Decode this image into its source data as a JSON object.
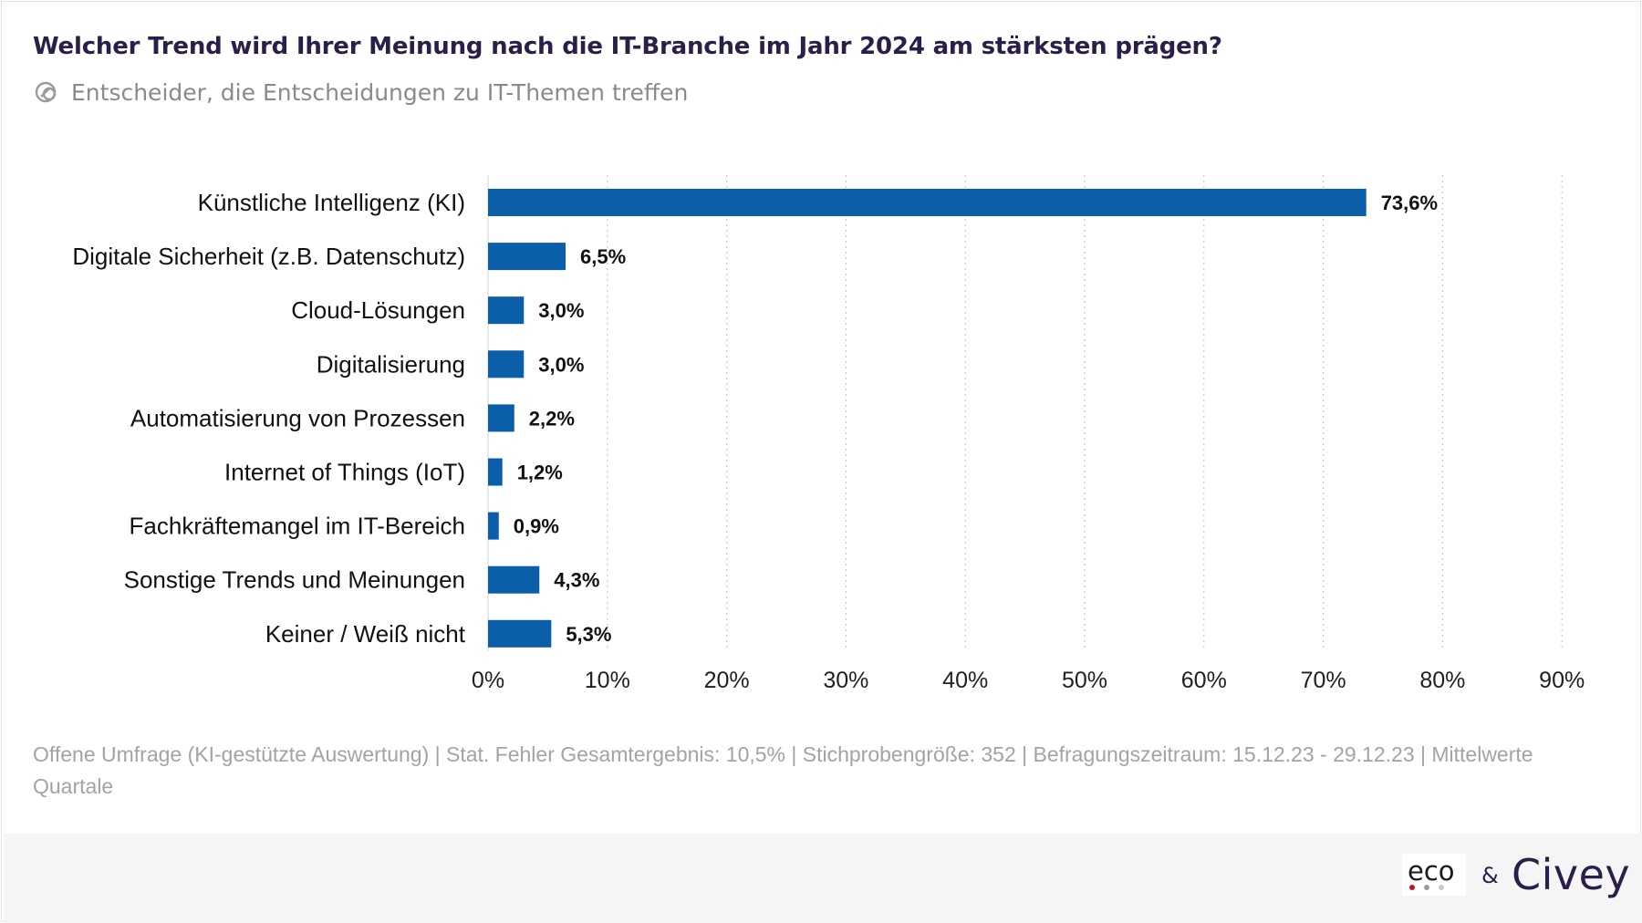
{
  "header": {
    "title": "Welcher Trend wird Ihrer Meinung nach die IT-Branche im Jahr 2024 am stärksten prägen?",
    "subtitle": "Entscheider, die Entscheidungen zu IT-Themen treffen",
    "subtitle_icon": "target-group-icon"
  },
  "chart_data": {
    "type": "bar",
    "orientation": "horizontal",
    "categories": [
      "Künstliche Intelligenz (KI)",
      "Digitale Sicherheit (z.B. Datenschutz)",
      "Cloud-Lösungen",
      "Digitalisierung",
      "Automatisierung von Prozessen",
      "Internet of Things (IoT)",
      "Fachkräftemangel im IT-Bereich",
      "Sonstige Trends und Meinungen",
      "Keiner / Weiß nicht"
    ],
    "values": [
      73.6,
      6.5,
      3.0,
      3.0,
      2.2,
      1.2,
      0.9,
      4.3,
      5.3
    ],
    "value_labels": [
      "73,6%",
      "6,5%",
      "3,0%",
      "3,0%",
      "2,2%",
      "1,2%",
      "0,9%",
      "4,3%",
      "5,3%"
    ],
    "xlim": [
      0,
      90
    ],
    "xticks": [
      0,
      10,
      20,
      30,
      40,
      50,
      60,
      70,
      80,
      90
    ],
    "xtick_labels": [
      "0%",
      "10%",
      "20%",
      "30%",
      "40%",
      "50%",
      "60%",
      "70%",
      "80%",
      "90%"
    ],
    "grid": "vertical dotted",
    "bar_color": "#0a5fa8",
    "xlabel": "",
    "ylabel": ""
  },
  "footer": {
    "note": "Offene Umfrage (KI-gestützte Auswertung) | Stat. Fehler Gesamtergebnis: 10,5% | Stichprobengröße: 352 | Befragungszeitraum: 15.12.23 - 29.12.23 | Mittelwerte Quartale",
    "logo_left": "eco",
    "logo_left_dot_colors": [
      "#c8102e",
      "#9a9a9a",
      "#c9c9c9"
    ],
    "ampersand": "&",
    "logo_right": "Civey"
  }
}
